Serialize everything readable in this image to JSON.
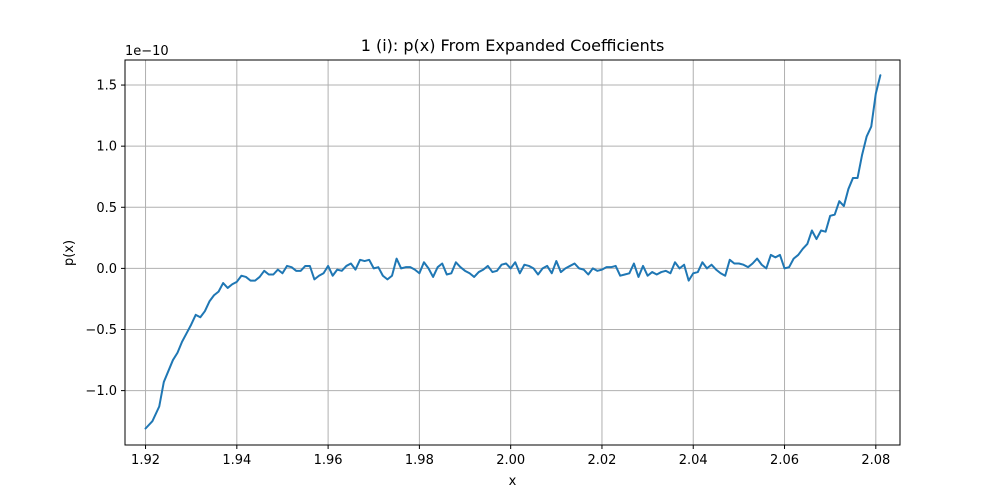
{
  "chart_data": {
    "type": "line",
    "title": "1 (i): p(x) From Expanded Coefficients",
    "xlabel": "x",
    "ylabel": "p(x)",
    "y_offset_label": "1e−10",
    "xlim": [
      1.9155,
      2.0853
    ],
    "ylim": [
      -1.445,
      1.705
    ],
    "x_ticks": [
      1.92,
      1.94,
      1.96,
      1.98,
      2.0,
      2.02,
      2.04,
      2.06,
      2.08
    ],
    "x_tick_labels": [
      "1.92",
      "1.94",
      "1.96",
      "1.98",
      "2.00",
      "2.02",
      "2.04",
      "2.06",
      "2.08"
    ],
    "y_ticks": [
      -1.0,
      -0.5,
      0.0,
      0.5,
      1.0,
      1.5
    ],
    "y_tick_labels": [
      "−1.0",
      "−0.5",
      "0.0",
      "0.5",
      "1.0",
      "1.5"
    ],
    "grid": true,
    "series_color": "#1f77b4",
    "series": [
      {
        "x": [
          1.92,
          1.9215,
          1.923,
          1.924,
          1.925,
          1.926,
          1.927,
          1.928,
          1.929,
          1.93,
          1.931,
          1.932,
          1.933,
          1.934,
          1.935,
          1.936,
          1.937,
          1.938,
          1.939,
          1.94,
          1.941,
          1.942,
          1.943,
          1.944,
          1.945,
          1.946,
          1.947,
          1.948,
          1.949,
          1.95,
          1.951,
          1.952,
          1.953,
          1.954,
          1.955,
          1.956,
          1.957,
          1.958,
          1.959,
          1.96,
          1.961,
          1.962,
          1.963,
          1.964,
          1.965,
          1.966,
          1.967,
          1.968,
          1.969,
          1.97,
          1.971,
          1.972,
          1.973,
          1.974,
          1.975,
          1.976,
          1.977,
          1.978,
          1.979,
          1.98,
          1.981,
          1.982,
          1.983,
          1.984,
          1.985,
          1.986,
          1.987,
          1.988,
          1.989,
          1.99,
          1.991,
          1.992,
          1.993,
          1.994,
          1.995,
          1.996,
          1.997,
          1.998,
          1.999,
          2.0,
          2.001,
          2.002,
          2.003,
          2.004,
          2.005,
          2.006,
          2.007,
          2.008,
          2.009,
          2.01,
          2.011,
          2.012,
          2.013,
          2.014,
          2.015,
          2.016,
          2.017,
          2.018,
          2.019,
          2.02,
          2.021,
          2.022,
          2.023,
          2.024,
          2.025,
          2.026,
          2.027,
          2.028,
          2.029,
          2.03,
          2.031,
          2.032,
          2.033,
          2.034,
          2.035,
          2.036,
          2.037,
          2.038,
          2.039,
          2.04,
          2.041,
          2.042,
          2.043,
          2.044,
          2.045,
          2.046,
          2.047,
          2.048,
          2.049,
          2.05,
          2.051,
          2.052,
          2.053,
          2.054,
          2.055,
          2.056,
          2.057,
          2.058,
          2.059,
          2.06,
          2.061,
          2.062,
          2.063,
          2.064,
          2.065,
          2.066,
          2.067,
          2.068,
          2.069,
          2.07,
          2.071,
          2.072,
          2.073,
          2.074,
          2.075,
          2.076,
          2.077,
          2.078,
          2.079,
          2.08,
          2.081
        ],
        "y": [
          -1.31,
          -1.25,
          -1.13,
          -0.93,
          -0.84,
          -0.75,
          -0.69,
          -0.6,
          -0.53,
          -0.46,
          -0.38,
          -0.4,
          -0.35,
          -0.27,
          -0.22,
          -0.19,
          -0.12,
          -0.16,
          -0.13,
          -0.11,
          -0.06,
          -0.07,
          -0.1,
          -0.1,
          -0.07,
          -0.02,
          -0.05,
          -0.05,
          -0.01,
          -0.04,
          0.02,
          0.01,
          -0.02,
          -0.02,
          0.02,
          0.02,
          -0.09,
          -0.06,
          -0.04,
          0.02,
          -0.06,
          -0.01,
          -0.02,
          0.02,
          0.04,
          -0.01,
          0.07,
          0.06,
          0.07,
          0.0,
          0.01,
          -0.06,
          -0.09,
          -0.06,
          0.08,
          0.0,
          0.01,
          0.01,
          -0.01,
          -0.04,
          0.05,
          0.0,
          -0.07,
          0.01,
          0.04,
          -0.05,
          -0.04,
          0.05,
          0.01,
          -0.02,
          -0.04,
          -0.07,
          -0.03,
          -0.01,
          0.02,
          -0.03,
          -0.02,
          0.03,
          0.04,
          0.0,
          0.05,
          -0.04,
          0.03,
          0.02,
          0.0,
          -0.05,
          0.0,
          0.02,
          -0.04,
          0.06,
          -0.03,
          0.0,
          0.02,
          0.04,
          0.0,
          -0.01,
          -0.05,
          0.0,
          -0.02,
          -0.01,
          0.01,
          0.01,
          0.02,
          -0.06,
          -0.05,
          -0.04,
          0.04,
          -0.07,
          0.02,
          -0.06,
          -0.03,
          -0.05,
          -0.03,
          -0.02,
          -0.04,
          0.05,
          0.0,
          0.03,
          -0.1,
          -0.04,
          -0.03,
          0.05,
          0.0,
          0.03,
          -0.01,
          -0.04,
          -0.06,
          0.07,
          0.04,
          0.04,
          0.03,
          0.01,
          0.04,
          0.08,
          0.03,
          0.0,
          0.11,
          0.09,
          0.11,
          0.0,
          0.01,
          0.08,
          0.11,
          0.16,
          0.2,
          0.31,
          0.24,
          0.31,
          0.3,
          0.43,
          0.44,
          0.55,
          0.51,
          0.65,
          0.74,
          0.74,
          0.93,
          1.08,
          1.16,
          1.43,
          1.58
        ]
      }
    ]
  }
}
